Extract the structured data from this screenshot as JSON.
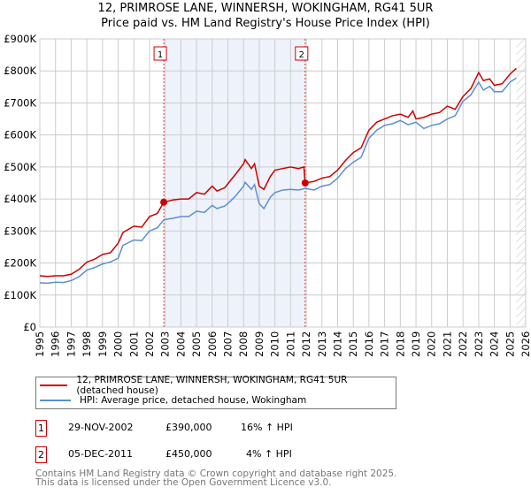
{
  "chart_data": {
    "type": "line",
    "title": "12, PRIMROSE LANE, WINNERSH, WOKINGHAM, RG41 5UR",
    "subtitle": "Price paid vs. HM Land Registry's House Price Index (HPI)",
    "xlim": [
      1995,
      2026
    ],
    "ylim": [
      0,
      900000
    ],
    "x_ticks": [
      "1995",
      "1996",
      "1997",
      "1998",
      "1999",
      "2000",
      "2001",
      "2002",
      "2003",
      "2004",
      "2005",
      "2006",
      "2007",
      "2008",
      "2009",
      "2010",
      "2011",
      "2012",
      "2013",
      "2014",
      "2015",
      "2016",
      "2017",
      "2018",
      "2019",
      "2020",
      "2021",
      "2022",
      "2023",
      "2024",
      "2025",
      "2026"
    ],
    "y_ticks": [
      {
        "v": 0,
        "label": "£0"
      },
      {
        "v": 100000,
        "label": "£100K"
      },
      {
        "v": 200000,
        "label": "£200K"
      },
      {
        "v": 300000,
        "label": "£300K"
      },
      {
        "v": 400000,
        "label": "£400K"
      },
      {
        "v": 500000,
        "label": "£500K"
      },
      {
        "v": 600000,
        "label": "£600K"
      },
      {
        "v": 700000,
        "label": "£700K"
      },
      {
        "v": 800000,
        "label": "£800K"
      },
      {
        "v": 900000,
        "label": "£900K"
      }
    ],
    "grid": true,
    "series": [
      {
        "name": "12, PRIMROSE LANE, WINNERSH, WOKINGHAM, RG41 5UR (detached house)",
        "color": "#cc0000",
        "x": [
          1995,
          1995.5,
          1996,
          1996.5,
          1997,
          1997.5,
          1998,
          1998.5,
          1999,
          1999.5,
          2000,
          2000.3,
          2001,
          2001.5,
          2002,
          2002.5,
          2002.91,
          2003.5,
          2004,
          2004.5,
          2005,
          2005.5,
          2006,
          2006.3,
          2006.8,
          2007.2,
          2007.5,
          2008,
          2008.1,
          2008.5,
          2008.7,
          2009,
          2009.3,
          2009.7,
          2010,
          2010.5,
          2011,
          2011.5,
          2011.85,
          2011.93,
          2012.5,
          2013,
          2013.5,
          2014,
          2014.5,
          2015,
          2015.5,
          2016,
          2016.5,
          2017,
          2017.5,
          2018,
          2018.5,
          2018.8,
          2019,
          2019.5,
          2020,
          2020.5,
          2021,
          2021.5,
          2022,
          2022.5,
          2023,
          2023.3,
          2023.7,
          2024,
          2024.5,
          2025,
          2025.4
        ],
        "y": [
          160000,
          158000,
          160000,
          160000,
          165000,
          180000,
          203000,
          212000,
          227000,
          232000,
          262000,
          295000,
          315000,
          312000,
          345000,
          355000,
          390000,
          397000,
          400000,
          400000,
          420000,
          415000,
          440000,
          425000,
          435000,
          460000,
          478000,
          510000,
          523000,
          495000,
          510000,
          440000,
          430000,
          470000,
          490000,
          495000,
          500000,
          495000,
          500000,
          450000,
          455000,
          465000,
          470000,
          490000,
          520000,
          545000,
          560000,
          615000,
          640000,
          650000,
          660000,
          665000,
          655000,
          675000,
          650000,
          655000,
          665000,
          670000,
          690000,
          680000,
          720000,
          745000,
          795000,
          770000,
          775000,
          755000,
          760000,
          790000,
          808000
        ]
      },
      {
        "name": "HPI: Average price, detached house, Wokingham",
        "color": "#5b8fd0",
        "x": [
          1995,
          1995.5,
          1996,
          1996.5,
          1997,
          1997.5,
          1998,
          1998.5,
          1999,
          1999.5,
          2000,
          2000.3,
          2001,
          2001.5,
          2002,
          2002.5,
          2002.91,
          2003.5,
          2004,
          2004.5,
          2005,
          2005.5,
          2006,
          2006.3,
          2006.8,
          2007.2,
          2007.5,
          2008,
          2008.1,
          2008.5,
          2008.7,
          2009,
          2009.3,
          2009.7,
          2010,
          2010.5,
          2011,
          2011.5,
          2011.93,
          2012.5,
          2013,
          2013.5,
          2014,
          2014.5,
          2015,
          2015.5,
          2016,
          2016.5,
          2017,
          2017.5,
          2018,
          2018.5,
          2019,
          2019.5,
          2020,
          2020.5,
          2021,
          2021.5,
          2022,
          2022.5,
          2023,
          2023.3,
          2023.7,
          2024,
          2024.5,
          2025,
          2025.4
        ],
        "y": [
          138000,
          137000,
          140000,
          139000,
          145000,
          157000,
          178000,
          186000,
          197000,
          203000,
          215000,
          255000,
          272000,
          270000,
          300000,
          310000,
          335000,
          340000,
          345000,
          345000,
          362000,
          358000,
          380000,
          370000,
          378000,
          395000,
          410000,
          440000,
          452000,
          430000,
          445000,
          385000,
          370000,
          405000,
          420000,
          428000,
          430000,
          428000,
          433000,
          428000,
          440000,
          445000,
          465000,
          495000,
          515000,
          530000,
          590000,
          615000,
          630000,
          635000,
          645000,
          632000,
          640000,
          620000,
          630000,
          635000,
          650000,
          660000,
          705000,
          725000,
          765000,
          740000,
          752000,
          735000,
          735000,
          765000,
          778000
        ]
      }
    ],
    "sales": [
      {
        "label": "1",
        "x": 2002.91,
        "price": 390000
      },
      {
        "label": "2",
        "x": 2011.93,
        "price": 450000
      }
    ]
  },
  "legend": {
    "red": "12, PRIMROSE LANE, WINNERSH, WOKINGHAM, RG41 5UR (detached house)",
    "blue": "HPI: Average price, detached house, Wokingham"
  },
  "transactions": [
    {
      "num": "1",
      "date": "29-NOV-2002",
      "price": "£390,000",
      "hpi": "16% ↑ HPI"
    },
    {
      "num": "2",
      "date": "05-DEC-2011",
      "price": "£450,000",
      "hpi": "4% ↑ HPI"
    }
  ],
  "footer": {
    "line1": "Contains HM Land Registry data © Crown copyright and database right 2025.",
    "line2": "This data is licensed under the Open Government Licence v3.0."
  }
}
